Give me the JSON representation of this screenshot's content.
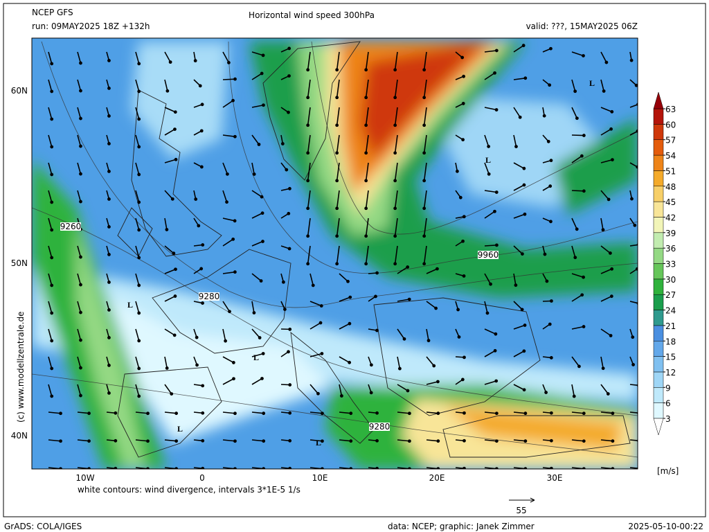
{
  "header": {
    "model": "NCEP GFS",
    "run": "run: 09MAY2025 18Z +132h",
    "title": "Horizontal wind speed 300hPa",
    "valid": "valid: ???, 15MAY2025 06Z"
  },
  "axes": {
    "lat_labels": [
      "60N",
      "50N",
      "40N"
    ],
    "lon_labels": [
      "10W",
      "0",
      "10E",
      "20E",
      "30E"
    ]
  },
  "map_labels": {
    "lows": [
      "L",
      "L",
      "L",
      "L",
      "L",
      "L"
    ],
    "contours": [
      "9260",
      "9280",
      "9960",
      "9280"
    ]
  },
  "colorbar": {
    "levels": [
      3,
      6,
      9,
      12,
      15,
      18,
      21,
      24,
      27,
      30,
      33,
      36,
      39,
      42,
      45,
      48,
      51,
      54,
      57,
      60,
      63
    ],
    "colors": [
      "#ffffff",
      "#dff8ff",
      "#bfe9fb",
      "#9fd6f6",
      "#80c0f0",
      "#63a8ea",
      "#4a8fe0",
      "#2f9a8e",
      "#1a9e4c",
      "#2fb23c",
      "#66c65a",
      "#94d984",
      "#c2ecb0",
      "#f2f5b8",
      "#f8e598",
      "#f7cf68",
      "#f4aa2a",
      "#ee8418",
      "#e45c0c",
      "#cf380a",
      "#b4140a",
      "#960008"
    ],
    "unit": "[m/s]"
  },
  "footer": {
    "note": "white contours: wind divergence, intervals 3*1E-5 1/s",
    "vector_ref": "55",
    "copyright": "(c) www.modellzentrale.de",
    "grads": "GrADS: COLA/IGES",
    "credits": "data: NCEP; graphic: Janek Zimmer",
    "timestamp": "2025-05-10-00:22"
  }
}
